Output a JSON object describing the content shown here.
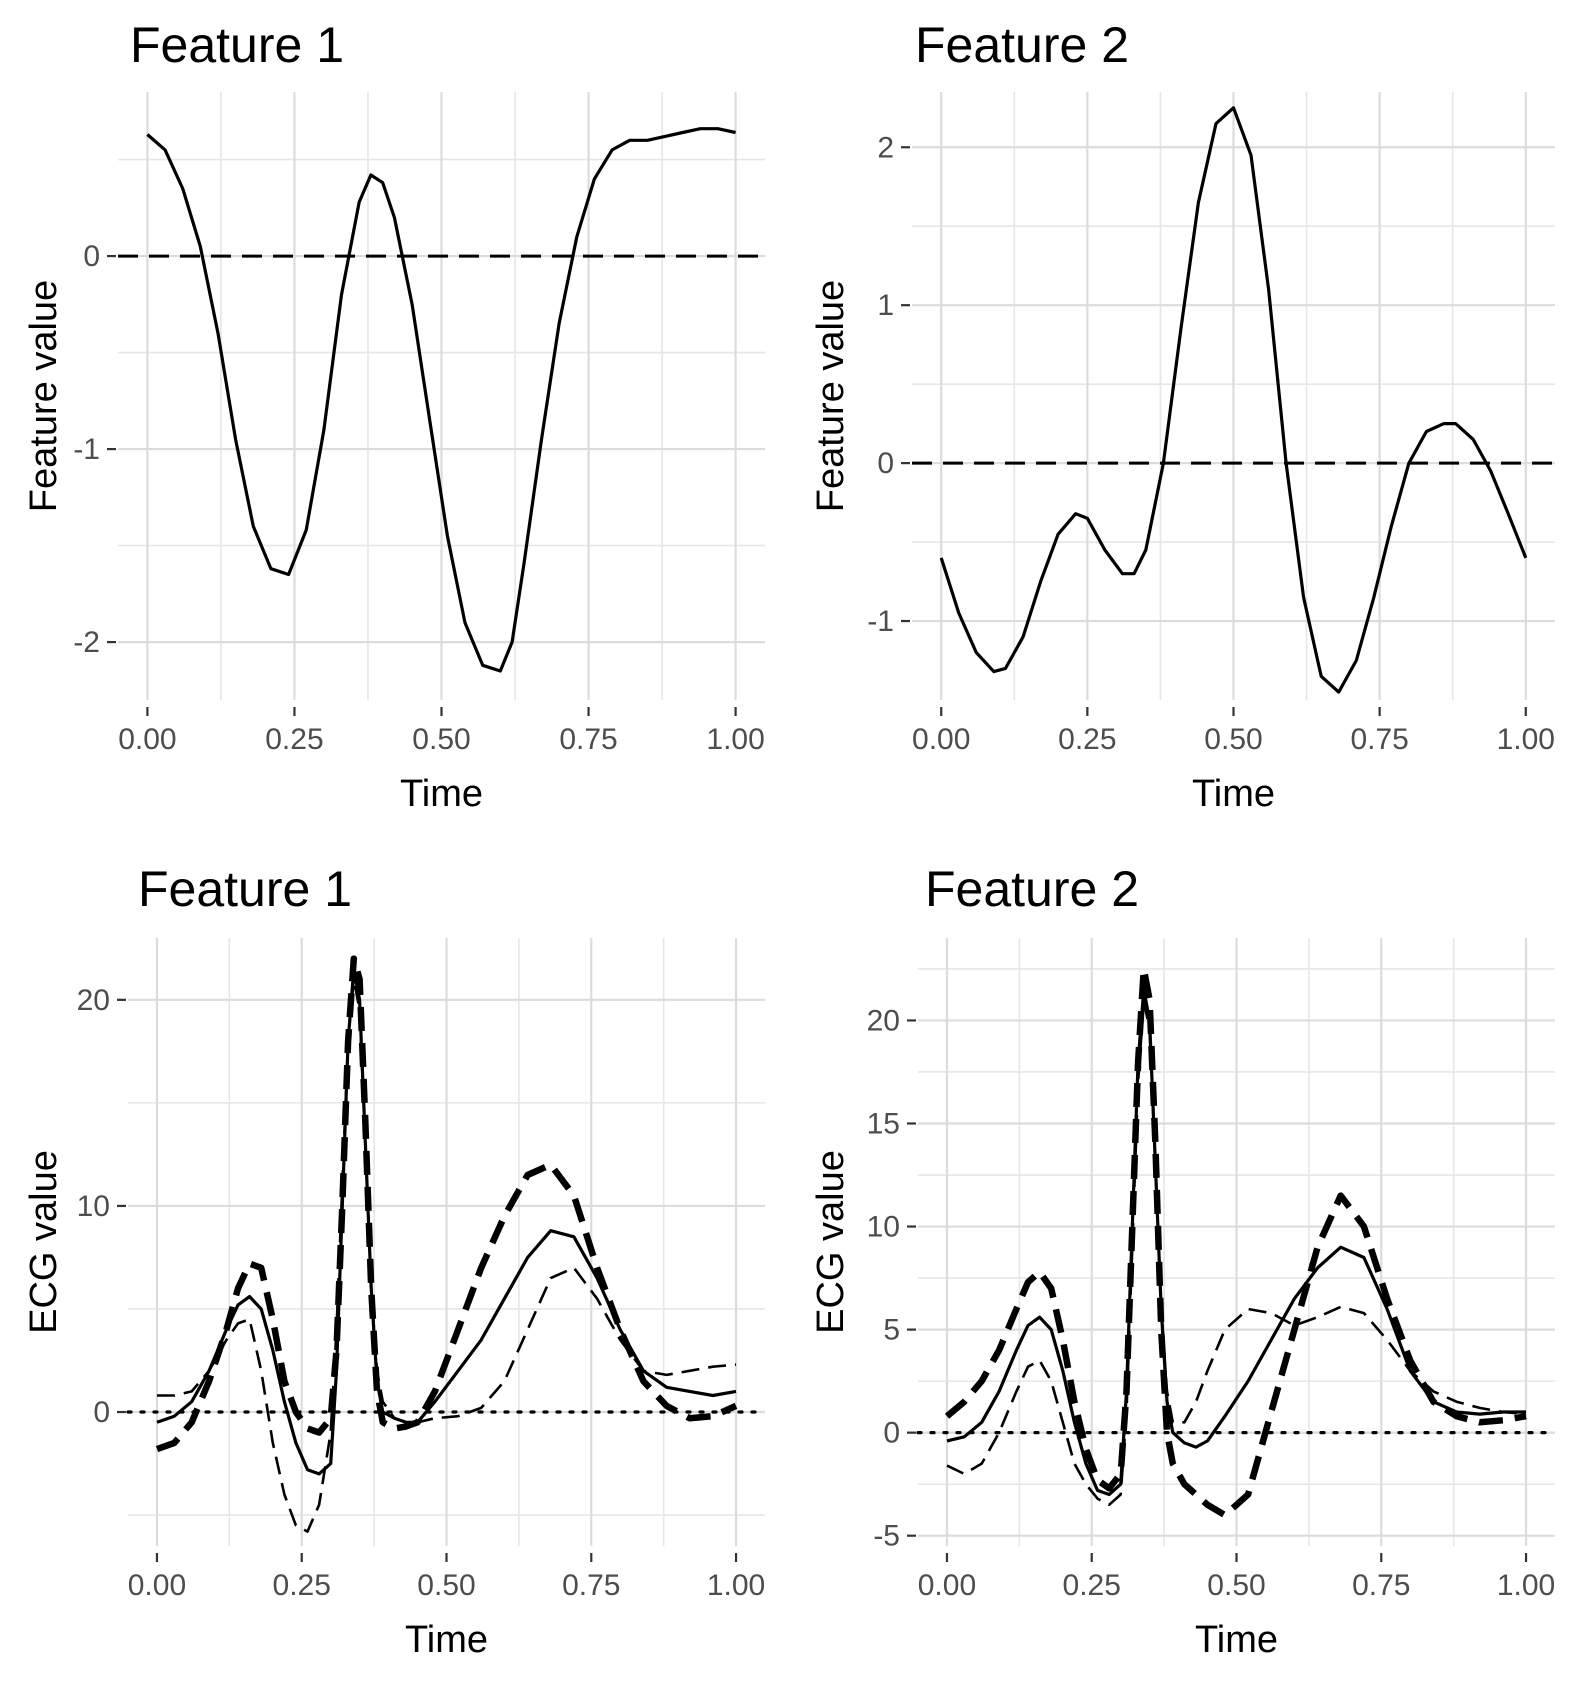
{
  "chart_data": [
    {
      "type": "line",
      "title": "Feature 1",
      "xlabel": "Time",
      "ylabel": "Feature value",
      "xlim": [
        -0.05,
        1.05
      ],
      "ylim": [
        -2.3,
        0.85
      ],
      "x_ticks": [
        0,
        0.25,
        0.5,
        0.75,
        1
      ],
      "x_tick_labels": [
        "0.00",
        "0.25",
        "0.50",
        "0.75",
        "1.00"
      ],
      "y_ticks": [
        -2,
        -1,
        0
      ],
      "y_tick_labels": [
        "-2",
        "-1",
        "0"
      ],
      "grid": true,
      "reference_line": {
        "y": 0,
        "style": "dashed"
      },
      "series": [
        {
          "style": "solid",
          "x": [
            0.0,
            0.03,
            0.06,
            0.09,
            0.12,
            0.15,
            0.18,
            0.21,
            0.24,
            0.27,
            0.3,
            0.33,
            0.36,
            0.38,
            0.4,
            0.42,
            0.45,
            0.48,
            0.51,
            0.54,
            0.57,
            0.6,
            0.62,
            0.64,
            0.67,
            0.7,
            0.73,
            0.76,
            0.79,
            0.82,
            0.85,
            0.88,
            0.91,
            0.94,
            0.97,
            1.0
          ],
          "y": [
            0.63,
            0.55,
            0.35,
            0.05,
            -0.4,
            -0.95,
            -1.4,
            -1.62,
            -1.65,
            -1.42,
            -0.9,
            -0.2,
            0.28,
            0.42,
            0.38,
            0.2,
            -0.25,
            -0.85,
            -1.45,
            -1.9,
            -2.12,
            -2.15,
            -2.0,
            -1.6,
            -0.95,
            -0.35,
            0.1,
            0.4,
            0.55,
            0.6,
            0.6,
            0.62,
            0.64,
            0.66,
            0.66,
            0.64
          ]
        }
      ]
    },
    {
      "type": "line",
      "title": "Feature 2",
      "xlabel": "Time",
      "ylabel": "Feature value",
      "xlim": [
        -0.05,
        1.05
      ],
      "ylim": [
        -1.5,
        2.35
      ],
      "x_ticks": [
        0,
        0.25,
        0.5,
        0.75,
        1
      ],
      "x_tick_labels": [
        "0.00",
        "0.25",
        "0.50",
        "0.75",
        "1.00"
      ],
      "y_ticks": [
        -1,
        0,
        1,
        2
      ],
      "y_tick_labels": [
        "-1",
        "0",
        "1",
        "2"
      ],
      "grid": true,
      "reference_line": {
        "y": 0,
        "style": "dashed"
      },
      "series": [
        {
          "style": "solid",
          "x": [
            0.0,
            0.03,
            0.06,
            0.09,
            0.11,
            0.14,
            0.17,
            0.2,
            0.23,
            0.25,
            0.28,
            0.31,
            0.33,
            0.35,
            0.38,
            0.41,
            0.44,
            0.47,
            0.5,
            0.53,
            0.56,
            0.59,
            0.62,
            0.65,
            0.68,
            0.71,
            0.74,
            0.77,
            0.8,
            0.83,
            0.86,
            0.88,
            0.91,
            0.94,
            0.97,
            1.0
          ],
          "y": [
            -0.6,
            -0.95,
            -1.2,
            -1.32,
            -1.3,
            -1.1,
            -0.75,
            -0.45,
            -0.32,
            -0.35,
            -0.55,
            -0.7,
            -0.7,
            -0.55,
            0.0,
            0.85,
            1.65,
            2.15,
            2.25,
            1.95,
            1.1,
            0.0,
            -0.85,
            -1.35,
            -1.45,
            -1.25,
            -0.85,
            -0.4,
            0.0,
            0.2,
            0.25,
            0.25,
            0.15,
            -0.05,
            -0.32,
            -0.6
          ]
        }
      ]
    },
    {
      "type": "line",
      "title": "Feature 1",
      "xlabel": "Time",
      "ylabel": "ECG value",
      "xlim": [
        -0.05,
        1.05
      ],
      "ylim": [
        -6.5,
        23
      ],
      "x_ticks": [
        0,
        0.25,
        0.5,
        0.75,
        1
      ],
      "x_tick_labels": [
        "0.00",
        "0.25",
        "0.50",
        "0.75",
        "1.00"
      ],
      "y_ticks": [
        0,
        10,
        20
      ],
      "y_tick_labels": [
        "0",
        "10",
        "20"
      ],
      "grid": true,
      "reference_line": {
        "y": 0,
        "style": "dotted"
      },
      "series": [
        {
          "style": "solid",
          "x": [
            0.0,
            0.03,
            0.06,
            0.09,
            0.12,
            0.14,
            0.16,
            0.18,
            0.2,
            0.22,
            0.24,
            0.26,
            0.28,
            0.3,
            0.31,
            0.32,
            0.33,
            0.34,
            0.35,
            0.36,
            0.37,
            0.38,
            0.39,
            0.41,
            0.43,
            0.45,
            0.48,
            0.52,
            0.56,
            0.6,
            0.64,
            0.68,
            0.72,
            0.76,
            0.8,
            0.84,
            0.88,
            0.92,
            0.96,
            1.0
          ],
          "y": [
            -0.5,
            -0.2,
            0.5,
            2.0,
            4.0,
            5.2,
            5.6,
            5.0,
            3.0,
            0.5,
            -1.5,
            -2.8,
            -3.0,
            -2.5,
            2.0,
            10.0,
            18.0,
            21.5,
            20.0,
            13.0,
            6.0,
            1.5,
            0.0,
            -0.3,
            -0.5,
            -0.5,
            0.5,
            2.0,
            3.5,
            5.5,
            7.5,
            8.8,
            8.5,
            6.5,
            4.0,
            2.0,
            1.2,
            1.0,
            0.8,
            1.0
          ]
        },
        {
          "style": "dashed",
          "x": [
            0.0,
            0.03,
            0.06,
            0.09,
            0.12,
            0.14,
            0.16,
            0.18,
            0.2,
            0.22,
            0.24,
            0.26,
            0.28,
            0.3,
            0.31,
            0.32,
            0.33,
            0.34,
            0.35,
            0.36,
            0.37,
            0.38,
            0.39,
            0.41,
            0.43,
            0.45,
            0.48,
            0.52,
            0.56,
            0.6,
            0.64,
            0.68,
            0.72,
            0.76,
            0.8,
            0.84,
            0.88,
            0.92,
            0.96,
            1.0
          ],
          "y": [
            0.8,
            0.8,
            1.0,
            2.0,
            3.5,
            4.3,
            4.5,
            2.0,
            -1.5,
            -4.0,
            -5.5,
            -5.8,
            -4.5,
            -1.0,
            4.0,
            11.0,
            18.0,
            21.0,
            19.5,
            13.0,
            6.0,
            2.0,
            0.5,
            -0.3,
            -0.5,
            -0.5,
            -0.3,
            -0.2,
            0.2,
            1.5,
            4.0,
            6.5,
            7.0,
            5.5,
            3.5,
            2.0,
            1.8,
            2.0,
            2.2,
            2.3
          ]
        },
        {
          "style": "dashed-thick",
          "x": [
            0.0,
            0.03,
            0.06,
            0.09,
            0.12,
            0.14,
            0.16,
            0.18,
            0.2,
            0.22,
            0.24,
            0.26,
            0.28,
            0.3,
            0.31,
            0.32,
            0.33,
            0.34,
            0.35,
            0.36,
            0.37,
            0.38,
            0.39,
            0.41,
            0.43,
            0.45,
            0.48,
            0.52,
            0.56,
            0.6,
            0.64,
            0.68,
            0.72,
            0.76,
            0.8,
            0.84,
            0.88,
            0.92,
            0.96,
            1.0
          ],
          "y": [
            -1.8,
            -1.5,
            -0.5,
            1.5,
            4.0,
            6.0,
            7.2,
            7.0,
            4.5,
            1.5,
            0.0,
            -0.8,
            -1.0,
            -0.3,
            3.0,
            10.0,
            18.0,
            22.0,
            21.0,
            14.0,
            6.0,
            1.0,
            -0.5,
            -0.8,
            -0.7,
            -0.5,
            1.0,
            4.0,
            7.0,
            9.5,
            11.5,
            12.0,
            10.5,
            7.0,
            4.0,
            1.5,
            0.3,
            -0.3,
            -0.2,
            0.3
          ]
        }
      ]
    },
    {
      "type": "line",
      "title": "Feature 2",
      "xlabel": "Time",
      "ylabel": "ECG value",
      "xlim": [
        -0.05,
        1.05
      ],
      "ylim": [
        -5.5,
        24
      ],
      "x_ticks": [
        0,
        0.25,
        0.5,
        0.75,
        1
      ],
      "x_tick_labels": [
        "0.00",
        "0.25",
        "0.50",
        "0.75",
        "1.00"
      ],
      "y_ticks": [
        -5,
        0,
        5,
        10,
        15,
        20
      ],
      "y_tick_labels": [
        "-5",
        "0",
        "5",
        "10",
        "15",
        "20"
      ],
      "grid": true,
      "reference_line": {
        "y": 0,
        "style": "dotted"
      },
      "series": [
        {
          "style": "solid",
          "x": [
            0.0,
            0.03,
            0.06,
            0.09,
            0.12,
            0.14,
            0.16,
            0.18,
            0.2,
            0.22,
            0.24,
            0.26,
            0.28,
            0.3,
            0.31,
            0.32,
            0.33,
            0.34,
            0.35,
            0.36,
            0.37,
            0.38,
            0.39,
            0.41,
            0.43,
            0.45,
            0.48,
            0.52,
            0.56,
            0.6,
            0.64,
            0.68,
            0.72,
            0.76,
            0.8,
            0.84,
            0.88,
            0.92,
            0.96,
            1.0
          ],
          "y": [
            -0.4,
            -0.2,
            0.5,
            2.0,
            4.0,
            5.2,
            5.6,
            5.0,
            3.0,
            0.5,
            -1.5,
            -2.8,
            -3.0,
            -2.5,
            2.0,
            10.0,
            18.0,
            21.5,
            20.0,
            13.0,
            6.0,
            1.5,
            0.0,
            -0.5,
            -0.7,
            -0.4,
            0.8,
            2.5,
            4.5,
            6.5,
            8.0,
            9.0,
            8.5,
            6.0,
            3.0,
            1.5,
            1.0,
            0.9,
            1.0,
            1.0
          ]
        },
        {
          "style": "dashed",
          "x": [
            0.0,
            0.03,
            0.06,
            0.09,
            0.12,
            0.14,
            0.16,
            0.18,
            0.2,
            0.22,
            0.24,
            0.26,
            0.28,
            0.3,
            0.31,
            0.32,
            0.33,
            0.34,
            0.35,
            0.36,
            0.37,
            0.38,
            0.39,
            0.41,
            0.43,
            0.45,
            0.48,
            0.52,
            0.56,
            0.6,
            0.64,
            0.68,
            0.72,
            0.76,
            0.8,
            0.84,
            0.88,
            0.92,
            0.96,
            1.0
          ],
          "y": [
            -1.6,
            -2.0,
            -1.5,
            0.0,
            2.0,
            3.2,
            3.5,
            2.5,
            0.5,
            -1.5,
            -2.5,
            -3.2,
            -3.5,
            -3.0,
            1.0,
            9.0,
            17.0,
            21.0,
            19.5,
            13.0,
            6.0,
            2.0,
            0.5,
            0.5,
            1.5,
            3.0,
            5.0,
            6.0,
            5.8,
            5.2,
            5.6,
            6.1,
            5.8,
            4.5,
            3.0,
            2.0,
            1.5,
            1.2,
            1.0,
            0.9
          ]
        },
        {
          "style": "dashed-thick",
          "x": [
            0.0,
            0.03,
            0.06,
            0.09,
            0.12,
            0.14,
            0.16,
            0.18,
            0.2,
            0.22,
            0.24,
            0.26,
            0.28,
            0.3,
            0.31,
            0.32,
            0.33,
            0.34,
            0.35,
            0.36,
            0.37,
            0.38,
            0.39,
            0.41,
            0.43,
            0.45,
            0.48,
            0.52,
            0.56,
            0.6,
            0.64,
            0.68,
            0.72,
            0.76,
            0.8,
            0.84,
            0.88,
            0.92,
            0.96,
            1.0
          ],
          "y": [
            0.8,
            1.5,
            2.5,
            4.0,
            6.0,
            7.3,
            7.8,
            7.0,
            4.5,
            1.5,
            -0.8,
            -2.3,
            -2.7,
            -2.0,
            2.0,
            10.0,
            18.0,
            22.5,
            21.0,
            14.0,
            5.0,
            0.0,
            -1.5,
            -2.5,
            -3.0,
            -3.5,
            -4.0,
            -3.0,
            1.0,
            5.0,
            9.0,
            11.5,
            10.0,
            6.5,
            3.5,
            1.5,
            0.8,
            0.5,
            0.6,
            0.8
          ]
        }
      ]
    }
  ]
}
